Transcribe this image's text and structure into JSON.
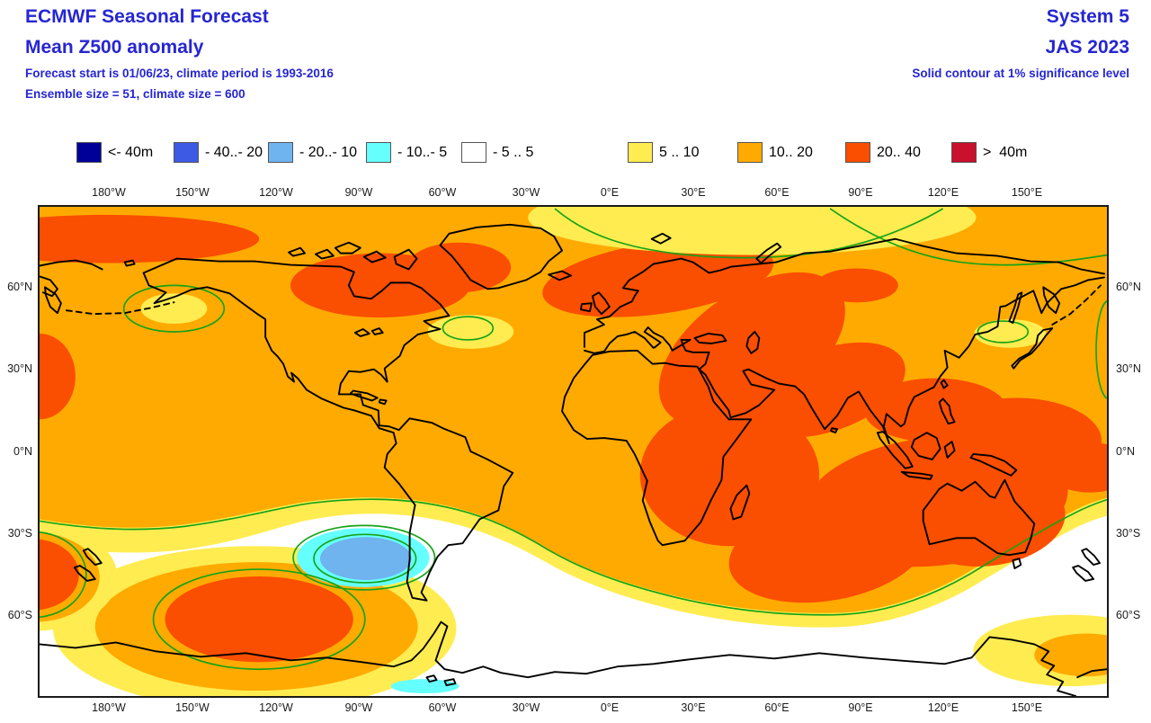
{
  "header": {
    "title": "ECMWF Seasonal Forecast",
    "subtitle": "Mean Z500 anomaly",
    "info_line1": "Forecast start is 01/06/23, climate period is 1993-2016",
    "info_line2": "Ensemble size = 51, climate size = 600",
    "system": "System 5",
    "season": "JAS 2023",
    "significance_note": "Solid contour at 1% significance level"
  },
  "legend": {
    "items": [
      {
        "label": "<- 40m",
        "color": "#000099"
      },
      {
        "label": "- 40..- 20",
        "color": "#3D5AE6"
      },
      {
        "label": "- 20..- 10",
        "color": "#6FB3EF"
      },
      {
        "label": "- 10..- 5",
        "color": "#66FFFF"
      },
      {
        "label": "- 5 .. 5",
        "color": "#FFFFFF"
      },
      {
        "label": "5 .. 10",
        "color": "#FFEC50"
      },
      {
        "label": "10.. 20",
        "color": "#FFAA00"
      },
      {
        "label": "20.. 40",
        "color": "#FA4E00"
      },
      {
        "label": ">  40m",
        "color": "#C9102C"
      }
    ]
  },
  "map": {
    "lon_ticks": [
      "180°W",
      "150°W",
      "120°W",
      "90°W",
      "60°W",
      "30°W",
      "0°E",
      "30°E",
      "60°E",
      "90°E",
      "120°E",
      "150°E"
    ],
    "lat_ticks": [
      "60°N",
      "30°N",
      "0°N",
      "30°S",
      "60°S"
    ],
    "colors": {
      "neg40": "#000099",
      "neg40_20": "#3D5AE6",
      "neg20_10": "#6FB3EF",
      "neg10_5": "#66FFFF",
      "neutral": "#FFFFFF",
      "pos5_10": "#FFEC50",
      "pos10_20": "#FFAA00",
      "pos20_40": "#FA4E00",
      "pos40": "#C9102C",
      "significance_contour": "#16A316",
      "coastline": "#000000",
      "title_text": "#2626D2",
      "tick_text": "#1A1A1A"
    }
  },
  "chart_data": {
    "type": "heatmap",
    "subtype": "filled-contour world map (cylindrical equidistant, 90N-90S, dateline-wrapped)",
    "title": "ECMWF Seasonal Forecast — Mean Z500 anomaly",
    "variable": "500 hPa geopotential height anomaly",
    "units": "m",
    "system": "System 5",
    "season": "JAS 2023",
    "forecast_start": "01/06/23",
    "climate_period": "1993-2016",
    "ensemble_size": 51,
    "climate_size": 600,
    "significance": "Solid green contour drawn at 1% significance level",
    "x_ticks": [
      "180°W",
      "150°W",
      "120°W",
      "90°W",
      "60°W",
      "30°W",
      "0°E",
      "30°E",
      "60°E",
      "90°E",
      "120°E",
      "150°E"
    ],
    "y_ticks": [
      "60°N",
      "30°N",
      "0°N",
      "30°S",
      "60°S"
    ],
    "legend_bands": [
      {
        "label": "<- 40m",
        "range_m": [
          null,
          -40
        ],
        "color": "#000099"
      },
      {
        "label": "- 40..- 20",
        "range_m": [
          -40,
          -20
        ],
        "color": "#3D5AE6"
      },
      {
        "label": "- 20..- 10",
        "range_m": [
          -20,
          -10
        ],
        "color": "#6FB3EF"
      },
      {
        "label": "- 10..- 5",
        "range_m": [
          -10,
          -5
        ],
        "color": "#66FFFF"
      },
      {
        "label": "- 5 .. 5",
        "range_m": [
          -5,
          5
        ],
        "color": "#FFFFFF"
      },
      {
        "label": "5 .. 10",
        "range_m": [
          5,
          10
        ],
        "color": "#FFEC50"
      },
      {
        "label": "10.. 20",
        "range_m": [
          10,
          20
        ],
        "color": "#FFAA00"
      },
      {
        "label": "20.. 40",
        "range_m": [
          20,
          40
        ],
        "color": "#FA4E00"
      },
      {
        "label": ">  40m",
        "range_m": [
          40,
          null
        ],
        "color": "#C9102C"
      }
    ],
    "features": [
      {
        "region": "Global background",
        "anomaly_m": "10..20",
        "note": "orange positive anomaly covers most of the map"
      },
      {
        "region": "NE Siberia / Bering Sea (~60-75N)",
        "anomaly_m": "20..40"
      },
      {
        "region": "Hudson Bay / Baffin Island (~55-70N, 60-100W)",
        "anomaly_m": "20..40"
      },
      {
        "region": "Northern Europe through Caspian / Middle East",
        "anomaly_m": "20..40"
      },
      {
        "region": "Central Africa, Indian Ocean, Australia, tropical W Pacific belt",
        "anomaly_m": "20..40"
      },
      {
        "region": "NW Pacific east of Japan (map edge)",
        "anomaly_m": "20..40"
      },
      {
        "region": "SE Pacific (~50-65S, 100-155W)",
        "anomaly_m": "20..40",
        "note": "ringed by green significance contour"
      },
      {
        "region": "Arctic band ~75-85N, 0-60E",
        "anomaly_m": "5..10",
        "note": "green significance contour along edge"
      },
      {
        "region": "Spots near Aleutians, south of Greenland, east of Japan",
        "anomaly_m": "5..10",
        "note": "each ringed in green"
      },
      {
        "region": "Southern Ocean 45-70S and Antarctica",
        "anomaly_m": "-5..5",
        "note": "white near-zero band"
      },
      {
        "region": "SE Pacific off southern Chile (~40S, 85-105W)",
        "anomaly_m": "-20..-10",
        "note": "blue minimum ringed by -10..-5 cyan and double green contour"
      },
      {
        "region": "Antarctic coast ~60W and ~150E",
        "anomaly_m": "-10..-5 / 5..20",
        "note": "small cyan sliver near 90W coast; yellow-orange patch near 150E"
      }
    ]
  }
}
